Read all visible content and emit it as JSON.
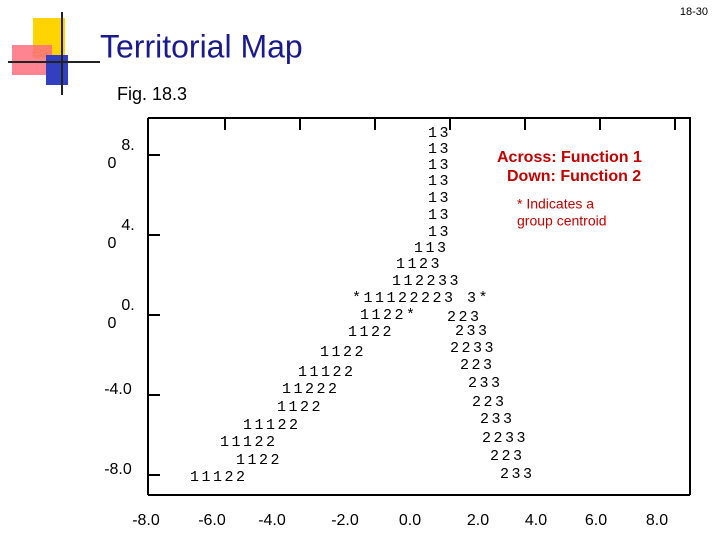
{
  "page_number": "18-30",
  "title": "Territorial Map",
  "subtitle": "Fig. 18.3",
  "y_labels": [
    [
      "8.",
      "0"
    ],
    [
      "4.",
      "0"
    ],
    [
      "0.",
      "0"
    ],
    [
      "-4.0"
    ],
    [
      "-8.0"
    ]
  ],
  "x_labels": [
    "-8.0",
    "-6.0",
    "-4.0",
    "-2.0",
    "0.0",
    "2.0",
    "4.0",
    "6.0",
    "8.0"
  ],
  "legend": [
    "Across: Function 1",
    "Down: Function 2"
  ],
  "note": [
    "* Indicates a",
    "group centroid"
  ],
  "map_text": [
    "13",
    "13",
    "13",
    "13",
    "13",
    "13",
    "13",
    "113",
    "1123",
    "112233",
    "*11122223 3*",
    "1122*",
    "223",
    "1122",
    "233",
    "1122",
    "2233",
    "11122",
    "223",
    "11222",
    "233",
    "1122",
    "223",
    "11122",
    "233",
    "11122",
    "2233",
    "1122",
    "223",
    "11122",
    "233"
  ]
}
